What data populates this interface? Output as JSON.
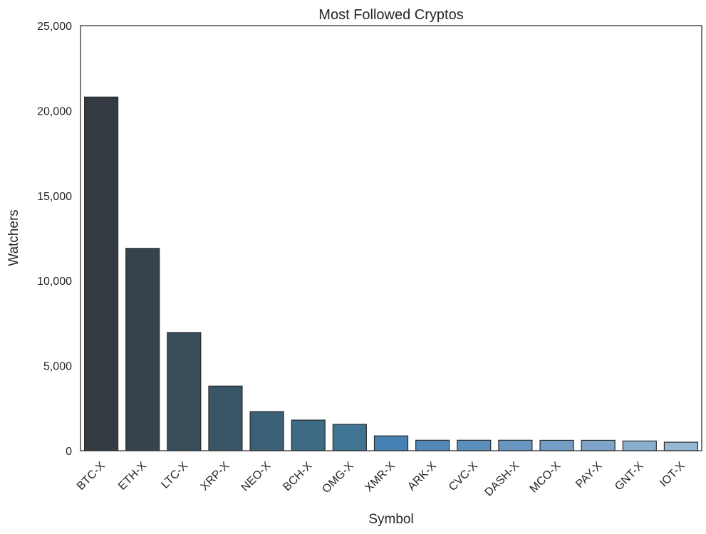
{
  "chart_data": {
    "type": "bar",
    "title": "Most Followed Cryptos",
    "xlabel": "Symbol",
    "ylabel": "Watchers",
    "ylim": [
      0,
      25000
    ],
    "yticks": [
      0,
      5000,
      10000,
      15000,
      20000,
      25000
    ],
    "ytick_labels": [
      "0",
      "5,000",
      "10,000",
      "15,000",
      "20,000",
      "25,000"
    ],
    "grid": false,
    "categories": [
      "BTC-X",
      "ETH-X",
      "LTC-X",
      "XRP-X",
      "NEO-X",
      "BCH-X",
      "OMG-X",
      "XMR-X",
      "ARK-X",
      "CVC-X",
      "DASH-X",
      "MCO-X",
      "PAY-X",
      "GNT-X",
      "IOT-X"
    ],
    "values": [
      20800,
      11900,
      6950,
      3800,
      2300,
      1800,
      1550,
      870,
      615,
      615,
      615,
      610,
      610,
      570,
      500
    ],
    "colors": [
      "#343a41",
      "#36434d",
      "#384d5a",
      "#395667",
      "#3b6075",
      "#3d6a84",
      "#3f7493",
      "#4681b3",
      "#5288b8",
      "#5d8fbc",
      "#6896c0",
      "#739dc4",
      "#7fa6ca",
      "#8aafcf",
      "#95b8d4"
    ]
  }
}
